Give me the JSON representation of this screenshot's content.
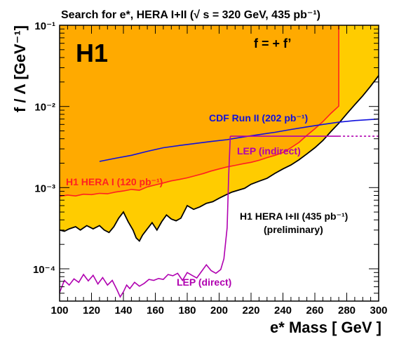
{
  "chart_data": {
    "type": "line",
    "title": "Search for e*, HERA I+II (√ s = 320 GeV, 435 pb⁻¹)",
    "experiment_logo": "H1",
    "coupling_note": "f = + f’",
    "xlabel": "e* Mass [ GeV ]",
    "ylabel": "f / Λ [GeV⁻¹]",
    "xlim": [
      100,
      300
    ],
    "ylim": [
      4e-05,
      0.1
    ],
    "yscale": "log",
    "x_ticks": [
      100,
      120,
      140,
      160,
      180,
      200,
      220,
      240,
      260,
      280,
      300
    ],
    "y_ticks": [
      {
        "value": 0.0001,
        "label": "10⁻⁴"
      },
      {
        "value": 0.001,
        "label": "10⁻³"
      },
      {
        "value": 0.01,
        "label": "10⁻²"
      },
      {
        "value": 0.1,
        "label": "10⁻¹"
      }
    ],
    "colors": {
      "excluded_fill": "#ffcc00",
      "hera1_fill": "#ffaa00",
      "h1_hera12": "#000000",
      "h1_hera1": "#ff2020",
      "cdf": "#1010dd",
      "lep": "#b000b0"
    },
    "series": [
      {
        "name": "H1 HERA I+II (435 pb⁻¹)",
        "note": "(preliminary)",
        "color": "#000000",
        "fill": "#ffcc00",
        "x": [
          100,
          103,
          106,
          110,
          113,
          117,
          121,
          125,
          128,
          131,
          134,
          137,
          140,
          143,
          146,
          148,
          150,
          152,
          155,
          158,
          161,
          164,
          167,
          170,
          173,
          176,
          180,
          184,
          188,
          192,
          196,
          200,
          204,
          208,
          212,
          216,
          220,
          225,
          230,
          235,
          240,
          245,
          250,
          255,
          260,
          265,
          270,
          275,
          280,
          285,
          290,
          295,
          300
        ],
        "y": [
          0.0003,
          0.00029,
          0.00031,
          0.00033,
          0.0003,
          0.00034,
          0.00031,
          0.00034,
          0.0003,
          0.00028,
          0.00033,
          0.00042,
          0.0005,
          0.00038,
          0.0003,
          0.00024,
          0.00022,
          0.00026,
          0.00031,
          0.00037,
          0.0003,
          0.00038,
          0.00046,
          0.00041,
          0.00039,
          0.00042,
          0.0006,
          0.00054,
          0.00058,
          0.00064,
          0.00067,
          0.00074,
          0.00081,
          0.00088,
          0.00093,
          0.00098,
          0.0011,
          0.0012,
          0.0013,
          0.0015,
          0.0017,
          0.0019,
          0.0022,
          0.0026,
          0.0031,
          0.0038,
          0.0049,
          0.0062,
          0.0081,
          0.0105,
          0.0135,
          0.0178,
          0.024
        ]
      },
      {
        "name": "H1 HERA I (120 pb⁻¹)",
        "color": "#ff2020",
        "fill": "#ffaa00",
        "x": [
          100,
          105,
          110,
          115,
          120,
          125,
          130,
          135,
          140,
          145,
          150,
          155,
          160,
          165,
          170,
          175,
          180,
          185,
          190,
          195,
          200,
          205,
          210,
          215,
          220,
          225,
          230,
          235,
          240,
          245,
          250,
          255,
          260,
          265,
          270,
          275
        ],
        "y": [
          0.00078,
          0.00081,
          0.00079,
          0.00083,
          0.00082,
          0.00085,
          0.00084,
          0.00088,
          0.00091,
          0.00095,
          0.00093,
          0.00102,
          0.00108,
          0.00114,
          0.00121,
          0.00126,
          0.00132,
          0.0014,
          0.00149,
          0.0016,
          0.0017,
          0.0018,
          0.00188,
          0.00197,
          0.00205,
          0.00217,
          0.00234,
          0.0025,
          0.0027,
          0.0031,
          0.0036,
          0.0044,
          0.0053,
          0.0065,
          0.0082,
          0.0101
        ]
      },
      {
        "name": "CDF Run II (202 pb⁻¹)",
        "color": "#1010dd",
        "x": [
          125,
          135,
          145,
          155,
          165,
          175,
          185,
          195,
          205,
          215,
          225,
          235,
          245,
          255,
          265,
          275,
          285,
          295,
          300
        ],
        "y": [
          0.0021,
          0.0023,
          0.0025,
          0.0028,
          0.0031,
          0.0033,
          0.0035,
          0.0037,
          0.0039,
          0.0042,
          0.0045,
          0.0048,
          0.0052,
          0.0056,
          0.006,
          0.0064,
          0.0067,
          0.0069,
          0.007
        ]
      },
      {
        "name": "LEP (indirect)",
        "color": "#b000b0",
        "x": [
          207,
          275,
          300
        ],
        "y": [
          0.0043,
          0.0043,
          0.0043
        ]
      },
      {
        "name": "LEP (direct)",
        "color": "#b000b0",
        "x": [
          100,
          103,
          106,
          109,
          112,
          115,
          118,
          121,
          124,
          127,
          130,
          133,
          136,
          138,
          140,
          142,
          144,
          147,
          150,
          153,
          156,
          159,
          162,
          165,
          168,
          171,
          174,
          177,
          180,
          183,
          186,
          189,
          192,
          195,
          198,
          201,
          203,
          205,
          206,
          207
        ],
        "y": [
          5.1e-05,
          7.2e-05,
          6.3e-05,
          7.5e-05,
          6.8e-05,
          8.5e-05,
          7.1e-05,
          8.3e-05,
          6.5e-05,
          7.8e-05,
          6.3e-05,
          7.2e-05,
          5.5e-05,
          4.5e-05,
          5.2e-05,
          6.3e-05,
          5.7e-05,
          6.8e-05,
          6.1e-05,
          6.6e-05,
          7.4e-05,
          7.2e-05,
          7.6e-05,
          7.4e-05,
          8.5e-05,
          8.2e-05,
          8.8e-05,
          7.2e-05,
          9e-05,
          8.3e-05,
          7.7e-05,
          9.3e-05,
          0.000112,
          9.5e-05,
          8.8e-05,
          9.8e-05,
          0.000133,
          0.00032,
          0.0014,
          0.0043
        ]
      }
    ],
    "boundaries": {
      "hera1_vertical_x": 275,
      "hera1_vertical_top": 0.1,
      "lep_indirect_solid_until_x": 275
    }
  }
}
